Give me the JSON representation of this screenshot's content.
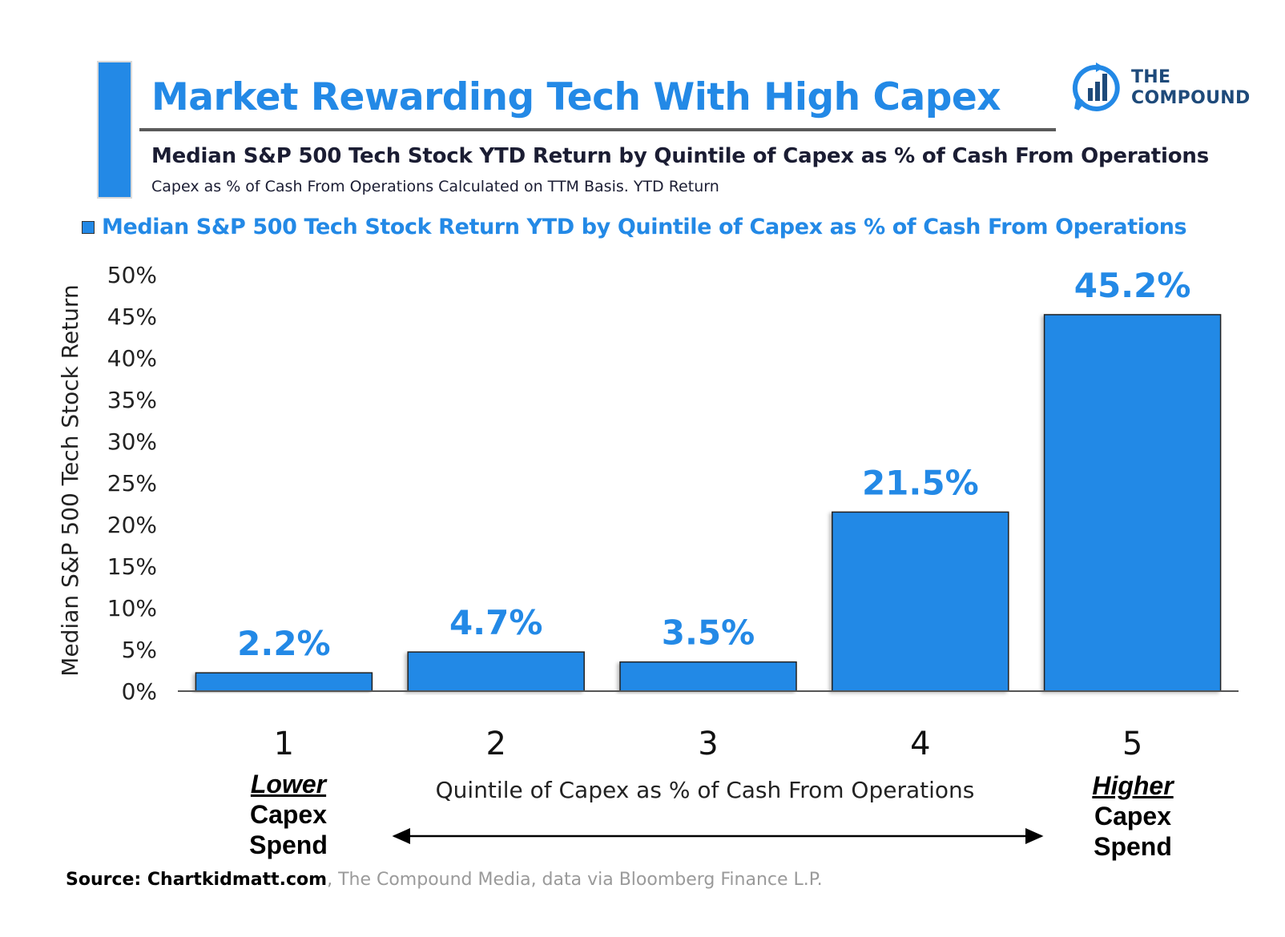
{
  "header": {
    "title": "Market Rewarding Tech With High Capex",
    "subtitle": "Median S&P 500 Tech Stock YTD Return by Quintile of Capex as % of Cash From Operations",
    "note": "Capex as % of Cash From Operations Calculated on TTM Basis. YTD Return"
  },
  "logo": {
    "icon": "compound-chart-icon",
    "line1": "THE",
    "line2": "COMPOUND"
  },
  "legend": {
    "label": "Median S&P 500 Tech Stock Return YTD by Quintile of Capex as % of Cash From Operations"
  },
  "annotations": {
    "lower_em": "Lower",
    "lower_l2": "Capex",
    "lower_l3": "Spend",
    "higher_em": "Higher",
    "higher_l2": "Capex",
    "higher_l3": "Spend",
    "arrow": "double-headed-arrow"
  },
  "source": {
    "bold": "Source: Chartkidmatt.com",
    "rest": ", The Compound Media, data via Bloomberg Finance L.P."
  },
  "colors": {
    "accent": "#2389e6",
    "text_dark": "#1b1d33",
    "logo_navy": "#1e4a7a"
  },
  "chart_data": {
    "type": "bar",
    "title": "Market Rewarding Tech With High Capex",
    "subtitle": "Median S&P 500 Tech Stock YTD Return by Quintile of Capex as % of Cash From Operations",
    "categories": [
      "1",
      "2",
      "3",
      "4",
      "5"
    ],
    "series": [
      {
        "name": "Median S&P 500 Tech Stock Return YTD by Quintile of Capex as % of Cash From Operations",
        "values": [
          2.2,
          4.7,
          3.5,
          21.5,
          45.2
        ],
        "labels": [
          "2.2%",
          "4.7%",
          "3.5%",
          "21.5%",
          "45.2%"
        ],
        "color": "#2389e6"
      }
    ],
    "xlabel": "Quintile of Capex as % of Cash From Operations",
    "ylabel": "Median S&P 500 Tech Stock Return",
    "ylim": [
      0,
      50
    ],
    "yticks": [
      0,
      5,
      10,
      15,
      20,
      25,
      30,
      35,
      40,
      45,
      50
    ],
    "ytick_labels": [
      "0%",
      "5%",
      "10%",
      "15%",
      "20%",
      "25%",
      "30%",
      "35%",
      "40%",
      "45%",
      "50%"
    ],
    "grid": false,
    "legend": "top-left"
  }
}
